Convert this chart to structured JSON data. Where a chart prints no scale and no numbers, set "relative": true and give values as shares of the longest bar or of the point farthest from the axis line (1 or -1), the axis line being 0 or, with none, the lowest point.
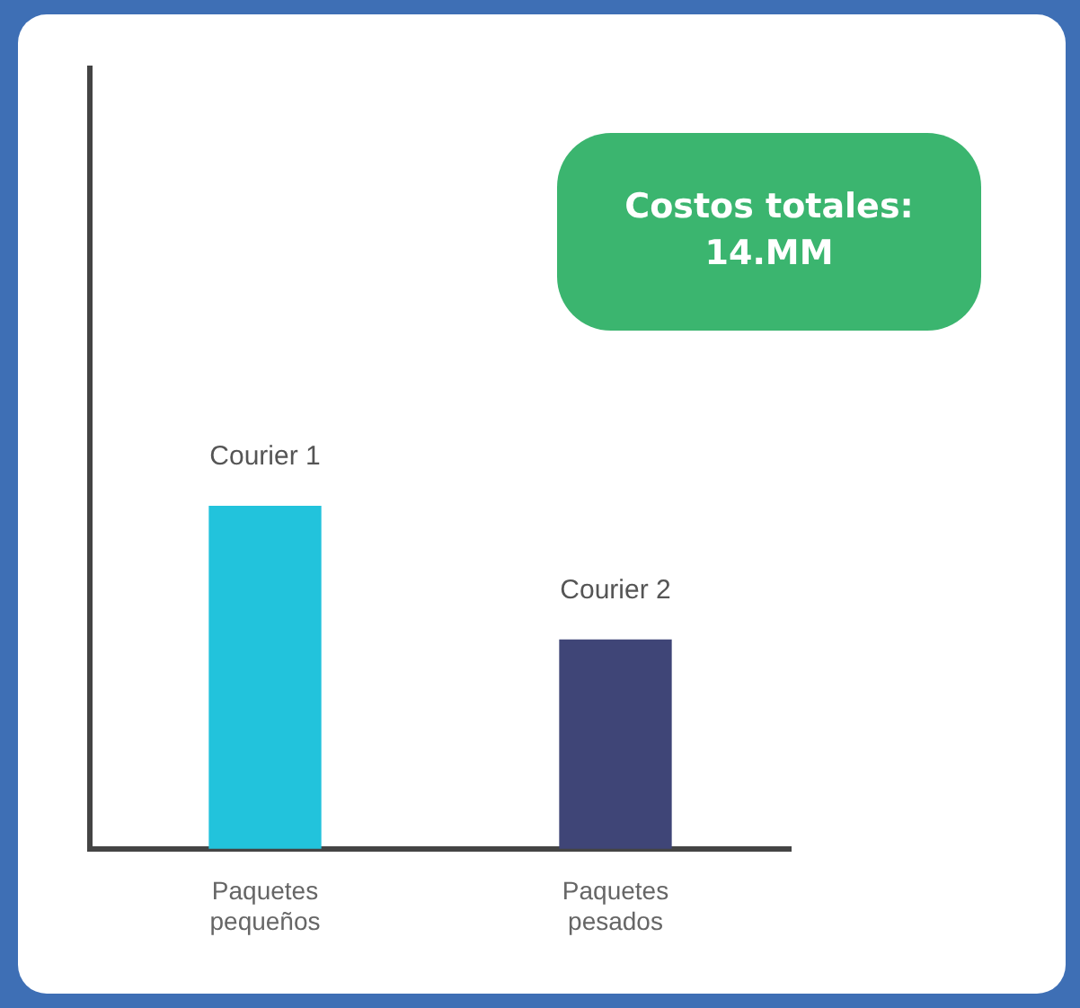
{
  "chart_data": {
    "type": "bar",
    "relative": true,
    "categories": [
      "Paquetes pequeños",
      "Paquetes pesados"
    ],
    "series": [
      {
        "name": "Courier 1",
        "color": "#22c3dc",
        "values": [
          1,
          null
        ]
      },
      {
        "name": "Courier 2",
        "color": "#3f4577",
        "values": [
          null,
          0.61
        ]
      }
    ],
    "annotations": [
      "Costos totales: 14.MM"
    ],
    "grid": false,
    "legend": false
  }
}
